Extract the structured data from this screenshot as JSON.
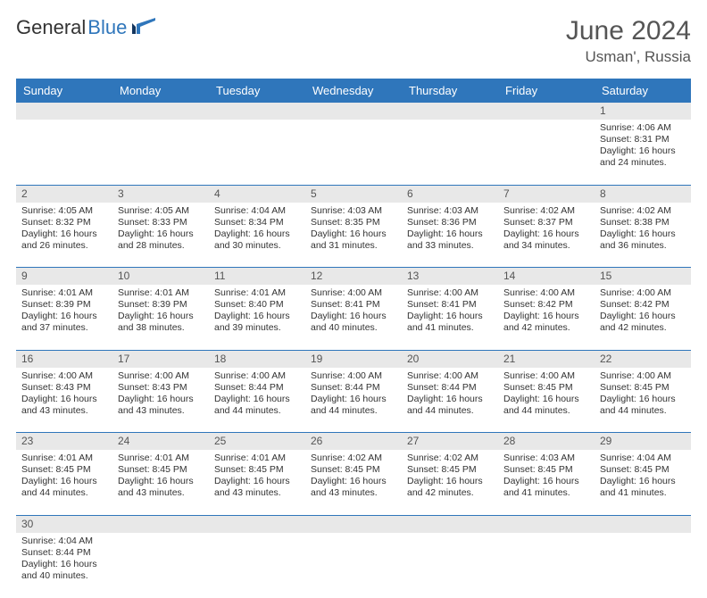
{
  "logo": {
    "text1": "General",
    "text2": "Blue"
  },
  "title": "June 2024",
  "location": "Usman', Russia",
  "dayHeaders": [
    "Sunday",
    "Monday",
    "Tuesday",
    "Wednesday",
    "Thursday",
    "Friday",
    "Saturday"
  ],
  "colors": {
    "headerBg": "#2f76bb",
    "headerText": "#ffffff",
    "dayNumBg": "#e8e8e8",
    "border": "#2f76bb",
    "text": "#333333"
  },
  "weeks": [
    [
      null,
      null,
      null,
      null,
      null,
      null,
      {
        "n": "1",
        "sr": "Sunrise: 4:06 AM",
        "ss": "Sunset: 8:31 PM",
        "dl": "Daylight: 16 hours and 24 minutes."
      }
    ],
    [
      {
        "n": "2",
        "sr": "Sunrise: 4:05 AM",
        "ss": "Sunset: 8:32 PM",
        "dl": "Daylight: 16 hours and 26 minutes."
      },
      {
        "n": "3",
        "sr": "Sunrise: 4:05 AM",
        "ss": "Sunset: 8:33 PM",
        "dl": "Daylight: 16 hours and 28 minutes."
      },
      {
        "n": "4",
        "sr": "Sunrise: 4:04 AM",
        "ss": "Sunset: 8:34 PM",
        "dl": "Daylight: 16 hours and 30 minutes."
      },
      {
        "n": "5",
        "sr": "Sunrise: 4:03 AM",
        "ss": "Sunset: 8:35 PM",
        "dl": "Daylight: 16 hours and 31 minutes."
      },
      {
        "n": "6",
        "sr": "Sunrise: 4:03 AM",
        "ss": "Sunset: 8:36 PM",
        "dl": "Daylight: 16 hours and 33 minutes."
      },
      {
        "n": "7",
        "sr": "Sunrise: 4:02 AM",
        "ss": "Sunset: 8:37 PM",
        "dl": "Daylight: 16 hours and 34 minutes."
      },
      {
        "n": "8",
        "sr": "Sunrise: 4:02 AM",
        "ss": "Sunset: 8:38 PM",
        "dl": "Daylight: 16 hours and 36 minutes."
      }
    ],
    [
      {
        "n": "9",
        "sr": "Sunrise: 4:01 AM",
        "ss": "Sunset: 8:39 PM",
        "dl": "Daylight: 16 hours and 37 minutes."
      },
      {
        "n": "10",
        "sr": "Sunrise: 4:01 AM",
        "ss": "Sunset: 8:39 PM",
        "dl": "Daylight: 16 hours and 38 minutes."
      },
      {
        "n": "11",
        "sr": "Sunrise: 4:01 AM",
        "ss": "Sunset: 8:40 PM",
        "dl": "Daylight: 16 hours and 39 minutes."
      },
      {
        "n": "12",
        "sr": "Sunrise: 4:00 AM",
        "ss": "Sunset: 8:41 PM",
        "dl": "Daylight: 16 hours and 40 minutes."
      },
      {
        "n": "13",
        "sr": "Sunrise: 4:00 AM",
        "ss": "Sunset: 8:41 PM",
        "dl": "Daylight: 16 hours and 41 minutes."
      },
      {
        "n": "14",
        "sr": "Sunrise: 4:00 AM",
        "ss": "Sunset: 8:42 PM",
        "dl": "Daylight: 16 hours and 42 minutes."
      },
      {
        "n": "15",
        "sr": "Sunrise: 4:00 AM",
        "ss": "Sunset: 8:42 PM",
        "dl": "Daylight: 16 hours and 42 minutes."
      }
    ],
    [
      {
        "n": "16",
        "sr": "Sunrise: 4:00 AM",
        "ss": "Sunset: 8:43 PM",
        "dl": "Daylight: 16 hours and 43 minutes."
      },
      {
        "n": "17",
        "sr": "Sunrise: 4:00 AM",
        "ss": "Sunset: 8:43 PM",
        "dl": "Daylight: 16 hours and 43 minutes."
      },
      {
        "n": "18",
        "sr": "Sunrise: 4:00 AM",
        "ss": "Sunset: 8:44 PM",
        "dl": "Daylight: 16 hours and 44 minutes."
      },
      {
        "n": "19",
        "sr": "Sunrise: 4:00 AM",
        "ss": "Sunset: 8:44 PM",
        "dl": "Daylight: 16 hours and 44 minutes."
      },
      {
        "n": "20",
        "sr": "Sunrise: 4:00 AM",
        "ss": "Sunset: 8:44 PM",
        "dl": "Daylight: 16 hours and 44 minutes."
      },
      {
        "n": "21",
        "sr": "Sunrise: 4:00 AM",
        "ss": "Sunset: 8:45 PM",
        "dl": "Daylight: 16 hours and 44 minutes."
      },
      {
        "n": "22",
        "sr": "Sunrise: 4:00 AM",
        "ss": "Sunset: 8:45 PM",
        "dl": "Daylight: 16 hours and 44 minutes."
      }
    ],
    [
      {
        "n": "23",
        "sr": "Sunrise: 4:01 AM",
        "ss": "Sunset: 8:45 PM",
        "dl": "Daylight: 16 hours and 44 minutes."
      },
      {
        "n": "24",
        "sr": "Sunrise: 4:01 AM",
        "ss": "Sunset: 8:45 PM",
        "dl": "Daylight: 16 hours and 43 minutes."
      },
      {
        "n": "25",
        "sr": "Sunrise: 4:01 AM",
        "ss": "Sunset: 8:45 PM",
        "dl": "Daylight: 16 hours and 43 minutes."
      },
      {
        "n": "26",
        "sr": "Sunrise: 4:02 AM",
        "ss": "Sunset: 8:45 PM",
        "dl": "Daylight: 16 hours and 43 minutes."
      },
      {
        "n": "27",
        "sr": "Sunrise: 4:02 AM",
        "ss": "Sunset: 8:45 PM",
        "dl": "Daylight: 16 hours and 42 minutes."
      },
      {
        "n": "28",
        "sr": "Sunrise: 4:03 AM",
        "ss": "Sunset: 8:45 PM",
        "dl": "Daylight: 16 hours and 41 minutes."
      },
      {
        "n": "29",
        "sr": "Sunrise: 4:04 AM",
        "ss": "Sunset: 8:45 PM",
        "dl": "Daylight: 16 hours and 41 minutes."
      }
    ],
    [
      {
        "n": "30",
        "sr": "Sunrise: 4:04 AM",
        "ss": "Sunset: 8:44 PM",
        "dl": "Daylight: 16 hours and 40 minutes."
      },
      null,
      null,
      null,
      null,
      null,
      null
    ]
  ]
}
